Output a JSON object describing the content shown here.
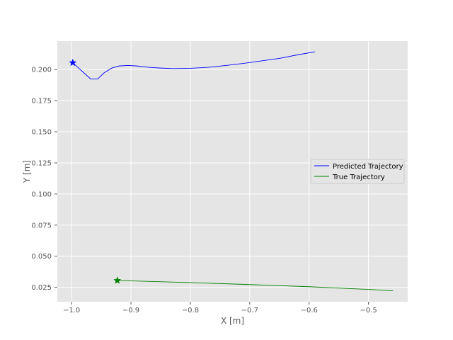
{
  "chart_data": {
    "type": "line",
    "title": "",
    "xlabel": "X [m]",
    "ylabel": "Y [m]",
    "xlim": [
      -1.024,
      -0.434
    ],
    "ylim": [
      0.0134,
      0.2229
    ],
    "xticks": [
      -1.0,
      -0.9,
      -0.8,
      -0.7,
      -0.6,
      -0.5
    ],
    "xtick_labels": [
      "−1.0",
      "−0.9",
      "−0.8",
      "−0.7",
      "−0.6",
      "−0.5"
    ],
    "yticks": [
      0.025,
      0.05,
      0.075,
      0.1,
      0.125,
      0.15,
      0.175,
      0.2
    ],
    "ytick_labels": [
      "0.025",
      "0.050",
      "0.075",
      "0.100",
      "0.125",
      "0.150",
      "0.175",
      "0.200"
    ],
    "grid": true,
    "legend_position": "center-right",
    "background": "#e5e5e5",
    "series": [
      {
        "name": "Predicted Trajectory",
        "color": "#0000ff",
        "marker": "start-star",
        "points": [
          [
            -0.998,
            0.2055
          ],
          [
            -0.983,
            0.199
          ],
          [
            -0.968,
            0.1925
          ],
          [
            -0.956,
            0.1925
          ],
          [
            -0.945,
            0.1975
          ],
          [
            -0.932,
            0.2013
          ],
          [
            -0.92,
            0.2029
          ],
          [
            -0.905,
            0.2033
          ],
          [
            -0.89,
            0.2029
          ],
          [
            -0.87,
            0.2018
          ],
          [
            -0.85,
            0.2012
          ],
          [
            -0.83,
            0.2008
          ],
          [
            -0.8,
            0.201
          ],
          [
            -0.77,
            0.2018
          ],
          [
            -0.74,
            0.2033
          ],
          [
            -0.71,
            0.205
          ],
          [
            -0.68,
            0.207
          ],
          [
            -0.65,
            0.209
          ],
          [
            -0.62,
            0.2118
          ],
          [
            -0.59,
            0.2143
          ]
        ]
      },
      {
        "name": "True Trajectory",
        "color": "#008000",
        "marker": "start-star",
        "points": [
          [
            -0.923,
            0.0305
          ],
          [
            -0.8,
            0.0288
          ],
          [
            -0.7,
            0.0272
          ],
          [
            -0.6,
            0.0255
          ],
          [
            -0.5,
            0.0233
          ],
          [
            -0.459,
            0.0222
          ]
        ]
      }
    ]
  }
}
